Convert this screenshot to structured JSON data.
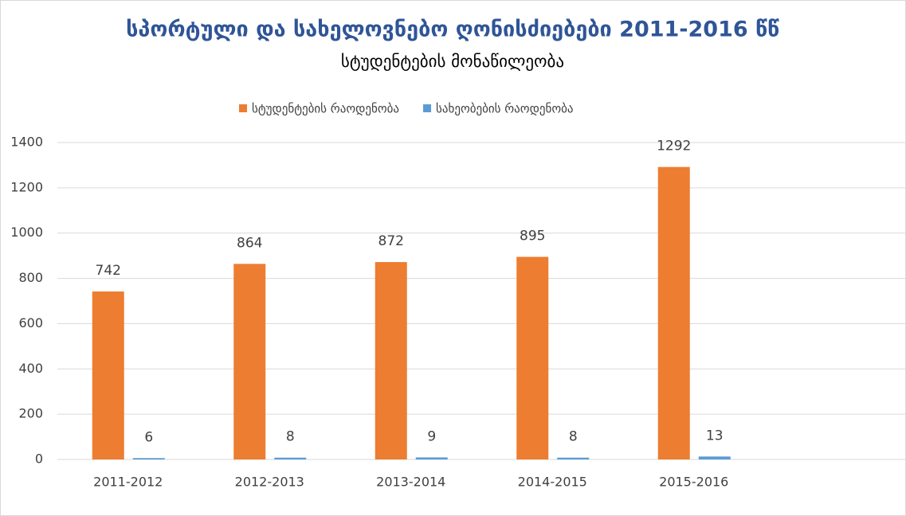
{
  "chart_data": {
    "type": "bar",
    "title": "სპორტული და სახელოვნებო ღონისძიებები 2011-2016 წწ",
    "subtitle": "სტუდენტების მონაწილეობა",
    "categories": [
      "2011-2012",
      "2012-2013",
      "2013-2014",
      "2014-2015",
      "2015-2016",
      null
    ],
    "series": [
      {
        "name": "სტუდენტების რაოდენობა",
        "color": "#ed7d31",
        "values": [
          742,
          864,
          872,
          895,
          1292,
          null
        ]
      },
      {
        "name": "სახეობების რაოდენობა",
        "color": "#5b9bd5",
        "values": [
          6,
          8,
          9,
          8,
          13,
          null
        ]
      }
    ],
    "ylim": [
      0,
      1400
    ],
    "yticks": [
      0,
      200,
      400,
      600,
      800,
      1000,
      1200,
      1400
    ],
    "grid": true,
    "legend": "top",
    "data_labels": true
  }
}
